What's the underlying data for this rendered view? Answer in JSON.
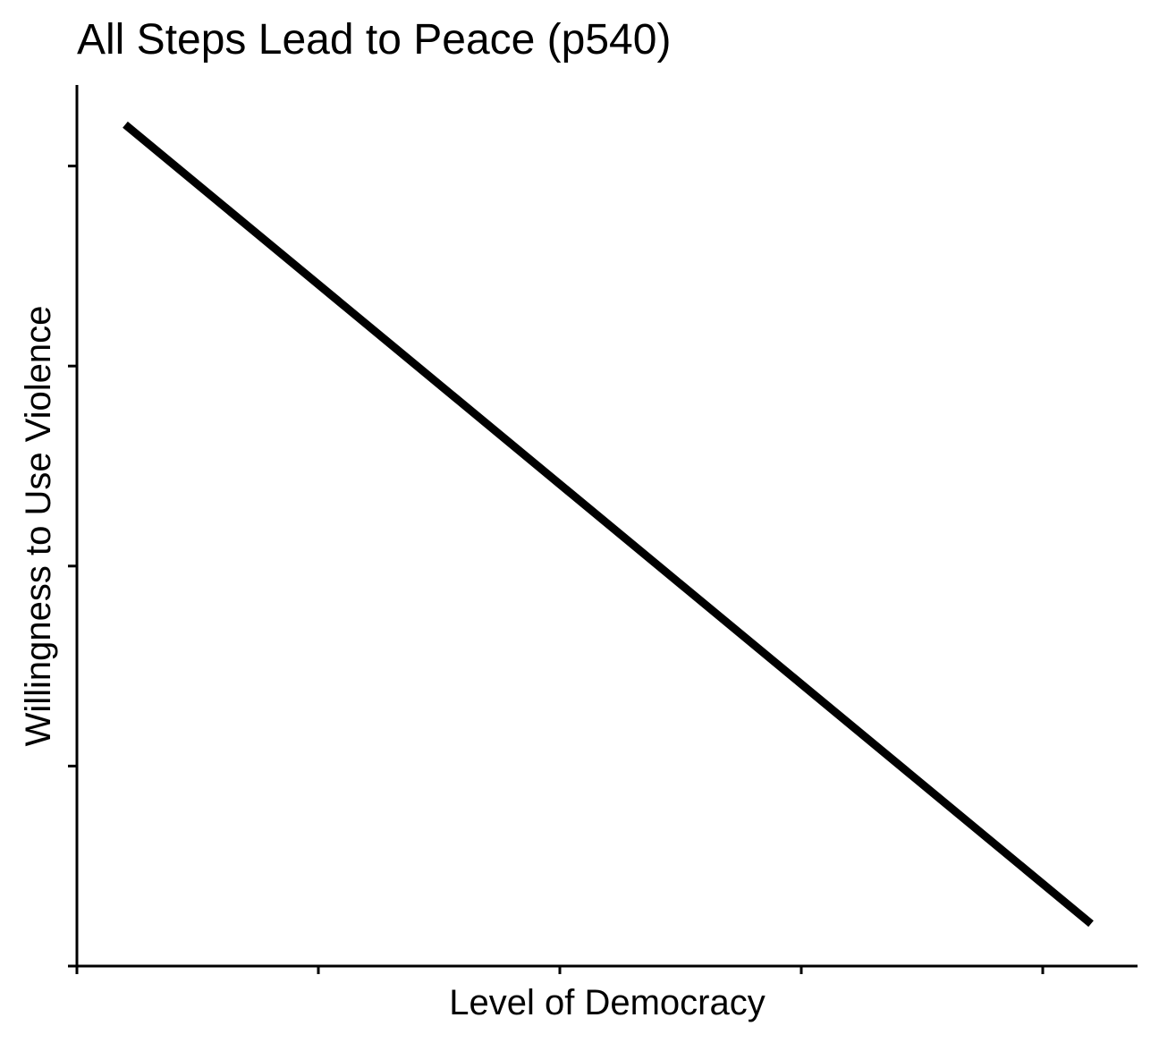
{
  "chart_data": {
    "type": "line",
    "title": "All Steps Lead to Peace (p540)",
    "xlabel": "Level of Democracy",
    "ylabel": "Willingness to Use Violence",
    "xlim": [
      0,
      1
    ],
    "ylim": [
      0,
      1
    ],
    "x_ticks": [
      0,
      0.25,
      0.5,
      0.75,
      1.0
    ],
    "y_ticks": [
      0,
      0.227,
      0.454,
      0.681,
      0.908
    ],
    "x_tick_labels": [],
    "y_tick_labels": [],
    "grid": false,
    "series": [
      {
        "x": [
          0.05,
          1.05
        ],
        "y": [
          0.955,
          0.048
        ]
      }
    ],
    "colors": {
      "line": "#000000",
      "axis": "#000000",
      "background": "#ffffff"
    }
  }
}
